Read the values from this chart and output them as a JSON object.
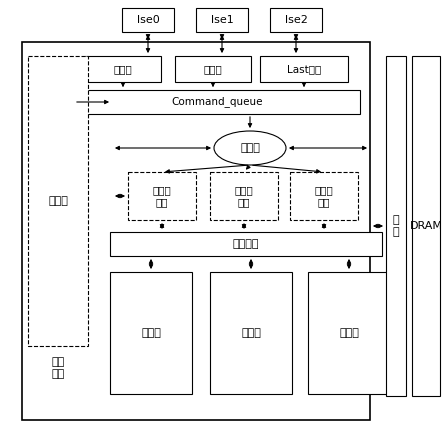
{
  "bg_color": "#ffffff",
  "ise_labels": [
    "lse0",
    "lse1",
    "lse2"
  ],
  "write_label": "写数据",
  "read_label": "读数据",
  "last_label": "Last信号",
  "cmdq_label": "Command_queue",
  "state_label": "状态机",
  "fifo_label": "流寄存\n器堆",
  "crossbar_label": "交叉开关",
  "dataflow_label": "数据流",
  "instr_label": "指令表",
  "update_label": "更新\n控制",
  "bus_label": "总\n线",
  "dram_label": "DRAM"
}
